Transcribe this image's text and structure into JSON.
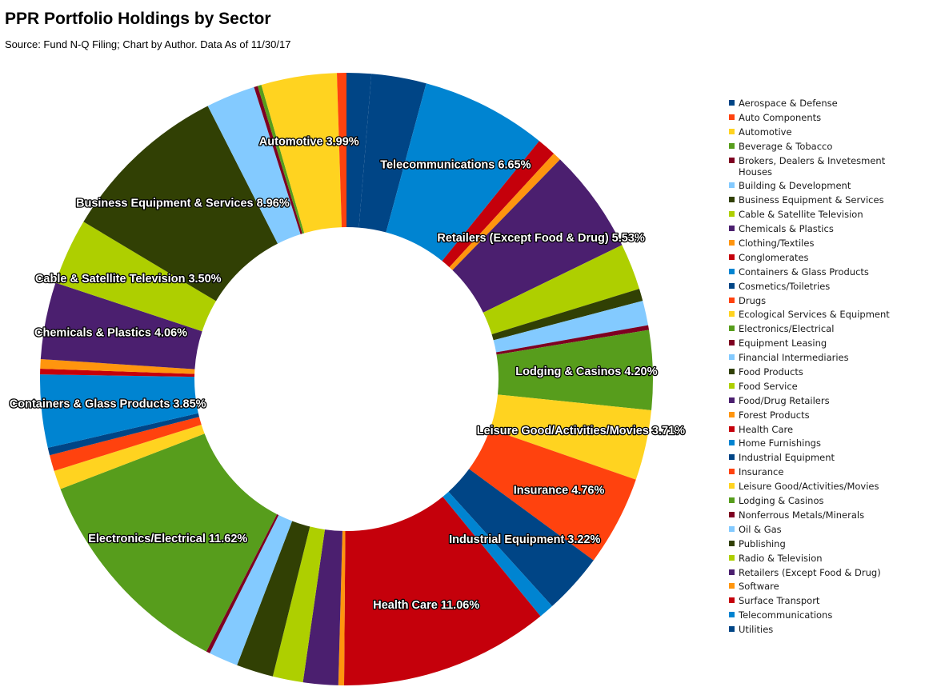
{
  "chart_data": {
    "type": "pie",
    "style": "donut",
    "title": "PPR Portfolio Holdings by Sector",
    "subtitle": "Source: Fund N-Q Filing; Chart by Author. Data As of 11/30/17",
    "legend_position": "right",
    "start_angle_deg": 0,
    "direction": "clockwise",
    "slices": [
      {
        "name": "Utilities",
        "value": 1.3,
        "color": "#004586"
      },
      {
        "name": "Aerospace & Defense",
        "value": 2.9,
        "color": "#004586"
      },
      {
        "name": "Telecommunications",
        "value": 6.65,
        "color": "#0084d1",
        "label": "Telecommunications 6.65%"
      },
      {
        "name": "Surface Transport",
        "value": 1.0,
        "color": "#c5000b"
      },
      {
        "name": "Software",
        "value": 0.45,
        "color": "#ff950e"
      },
      {
        "name": "Retailers (Except Food & Drug)",
        "value": 5.53,
        "color": "#4b1f6f",
        "label": "Retailers (Except Food & Drug) 5.53%"
      },
      {
        "name": "Radio & Television",
        "value": 2.45,
        "color": "#aecf00"
      },
      {
        "name": "Publishing",
        "value": 0.65,
        "color": "#314004"
      },
      {
        "name": "Oil & Gas",
        "value": 1.3,
        "color": "#83caff"
      },
      {
        "name": "Nonferrous Metals/Minerals",
        "value": 0.25,
        "color": "#7e0021"
      },
      {
        "name": "Lodging & Casinos",
        "value": 4.2,
        "color": "#579d1c",
        "label": "Lodging & Casinos 4.20%"
      },
      {
        "name": "Leisure Good/Activities/Movies",
        "value": 3.71,
        "color": "#ffd320",
        "label": "Leisure Good/Activities/Movies 3.71%"
      },
      {
        "name": "Insurance",
        "value": 4.76,
        "color": "#ff420e",
        "label": "Insurance 4.76%"
      },
      {
        "name": "Industrial Equipment",
        "value": 3.22,
        "color": "#004586",
        "label": "Industrial Equipment 3.22%"
      },
      {
        "name": "Home Furnishings",
        "value": 0.8,
        "color": "#0084d1"
      },
      {
        "name": "Health Care",
        "value": 11.06,
        "color": "#c5000b",
        "label": "Health Care 11.06%"
      },
      {
        "name": "Forest Products",
        "value": 0.3,
        "color": "#ff950e"
      },
      {
        "name": "Food/Drug Retailers",
        "value": 1.85,
        "color": "#4b1f6f"
      },
      {
        "name": "Food Service",
        "value": 1.6,
        "color": "#aecf00"
      },
      {
        "name": "Food Products",
        "value": 1.95,
        "color": "#314004"
      },
      {
        "name": "Financial Intermediaries",
        "value": 1.55,
        "color": "#83caff"
      },
      {
        "name": "Equipment Leasing",
        "value": 0.2,
        "color": "#7e0021"
      },
      {
        "name": "Electronics/Electrical",
        "value": 11.62,
        "color": "#579d1c",
        "label": "Electronics/Electrical 11.62%"
      },
      {
        "name": "Ecological Services & Equipment",
        "value": 1.0,
        "color": "#ffd320"
      },
      {
        "name": "Drugs",
        "value": 0.85,
        "color": "#ff420e"
      },
      {
        "name": "Cosmetics/Toiletries",
        "value": 0.4,
        "color": "#004586"
      },
      {
        "name": "Containers & Glass Products",
        "value": 3.85,
        "color": "#0084d1",
        "label": "Containers & Glass Products 3.85%"
      },
      {
        "name": "Conglomerates",
        "value": 0.3,
        "color": "#c5000b"
      },
      {
        "name": "Clothing/Textiles",
        "value": 0.5,
        "color": "#ff950e"
      },
      {
        "name": "Chemicals & Plastics",
        "value": 4.06,
        "color": "#4b1f6f",
        "label": "Chemicals & Plastics 4.06%"
      },
      {
        "name": "Cable & Satellite Television",
        "value": 3.5,
        "color": "#aecf00",
        "label": "Cable & Satellite Television 3.50%"
      },
      {
        "name": "Business Equipment & Services",
        "value": 8.96,
        "color": "#314004",
        "label": "Business Equipment & Services 8.96%"
      },
      {
        "name": "Building & Development",
        "value": 2.6,
        "color": "#83caff"
      },
      {
        "name": "Brokers, Dealers & Invetesment Houses",
        "value": 0.2,
        "color": "#7e0021"
      },
      {
        "name": "Beverage & Tobacco",
        "value": 0.2,
        "color": "#579d1c"
      },
      {
        "name": "Automotive",
        "value": 3.99,
        "color": "#ffd320",
        "label": "Automotive 3.99%"
      },
      {
        "name": "Auto Components",
        "value": 0.5,
        "color": "#ff420e"
      }
    ],
    "legend": [
      {
        "name": "Aerospace & Defense",
        "color": "#004586"
      },
      {
        "name": "Auto Components",
        "color": "#ff420e"
      },
      {
        "name": "Automotive",
        "color": "#ffd320"
      },
      {
        "name": "Beverage & Tobacco",
        "color": "#579d1c"
      },
      {
        "name": "Brokers, Dealers & Invetesment Houses",
        "color": "#7e0021"
      },
      {
        "name": "Building & Development",
        "color": "#83caff"
      },
      {
        "name": "Business Equipment & Services",
        "color": "#314004"
      },
      {
        "name": "Cable & Satellite Television",
        "color": "#aecf00"
      },
      {
        "name": "Chemicals & Plastics",
        "color": "#4b1f6f"
      },
      {
        "name": "Clothing/Textiles",
        "color": "#ff950e"
      },
      {
        "name": "Conglomerates",
        "color": "#c5000b"
      },
      {
        "name": "Containers & Glass Products",
        "color": "#0084d1"
      },
      {
        "name": "Cosmetics/Toiletries",
        "color": "#004586"
      },
      {
        "name": "Drugs",
        "color": "#ff420e"
      },
      {
        "name": "Ecological Services & Equipment",
        "color": "#ffd320"
      },
      {
        "name": "Electronics/Electrical",
        "color": "#579d1c"
      },
      {
        "name": "Equipment Leasing",
        "color": "#7e0021"
      },
      {
        "name": "Financial Intermediaries",
        "color": "#83caff"
      },
      {
        "name": "Food Products",
        "color": "#314004"
      },
      {
        "name": "Food Service",
        "color": "#aecf00"
      },
      {
        "name": "Food/Drug Retailers",
        "color": "#4b1f6f"
      },
      {
        "name": "Forest Products",
        "color": "#ff950e"
      },
      {
        "name": "Health Care",
        "color": "#c5000b"
      },
      {
        "name": "Home Furnishings",
        "color": "#0084d1"
      },
      {
        "name": "Industrial Equipment",
        "color": "#004586"
      },
      {
        "name": "Insurance",
        "color": "#ff420e"
      },
      {
        "name": "Leisure Good/Activities/Movies",
        "color": "#ffd320"
      },
      {
        "name": "Lodging & Casinos",
        "color": "#579d1c"
      },
      {
        "name": "Nonferrous Metals/Minerals",
        "color": "#7e0021"
      },
      {
        "name": "Oil & Gas",
        "color": "#83caff"
      },
      {
        "name": "Publishing",
        "color": "#314004"
      },
      {
        "name": "Radio & Television",
        "color": "#aecf00"
      },
      {
        "name": "Retailers (Except Food & Drug)",
        "color": "#4b1f6f"
      },
      {
        "name": "Software",
        "color": "#ff950e"
      },
      {
        "name": "Surface Transport",
        "color": "#c5000b"
      },
      {
        "name": "Telecommunications",
        "color": "#0084d1"
      },
      {
        "name": "Utilities",
        "color": "#004586"
      }
    ]
  }
}
